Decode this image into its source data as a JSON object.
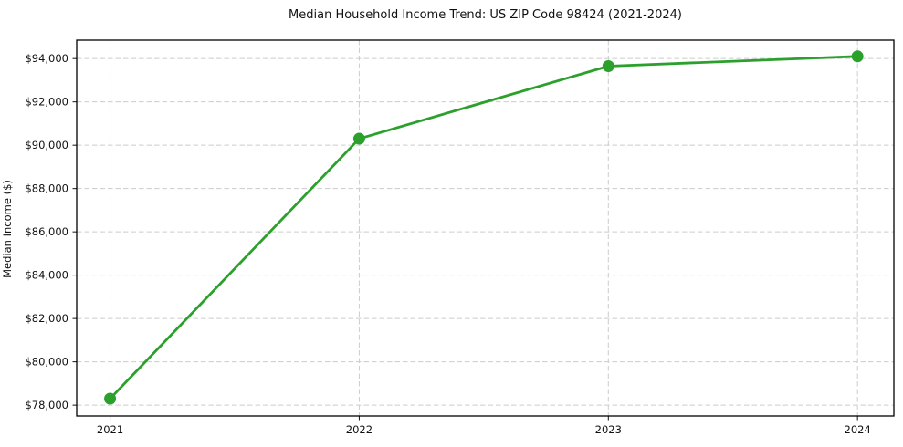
{
  "title": "Median Household Income Trend: US ZIP Code 98424 (2021-2024)",
  "chart_data": {
    "type": "line",
    "title": "Median Household Income Trend: US ZIP Code 98424 (2021-2024)",
    "xlabel": "",
    "ylabel": "Median Income ($)",
    "x": [
      2021,
      2022,
      2023,
      2024
    ],
    "categories": [
      "2021",
      "2022",
      "2023",
      "2024"
    ],
    "series": [
      {
        "name": "Median Household Income",
        "values": [
          78300,
          90300,
          93650,
          94100
        ]
      }
    ],
    "yticks": [
      78000,
      80000,
      82000,
      84000,
      86000,
      88000,
      90000,
      92000,
      94000
    ],
    "ytick_labels": [
      "$78,000",
      "$80,000",
      "$82,000",
      "$84,000",
      "$86,000",
      "$88,000",
      "$90,000",
      "$92,000",
      "$94,000"
    ],
    "xtick_labels": [
      "2021",
      "2022",
      "2023",
      "2024"
    ],
    "ylim": [
      77500,
      94850
    ],
    "xlim": [
      2020.866,
      2024.146
    ],
    "grid": true,
    "grid_style": "dashed",
    "legend": "none",
    "line_color": "#2ca02c",
    "marker": "circle",
    "marker_size": 6.5,
    "line_width": 2.8,
    "background": "#ffffff"
  }
}
